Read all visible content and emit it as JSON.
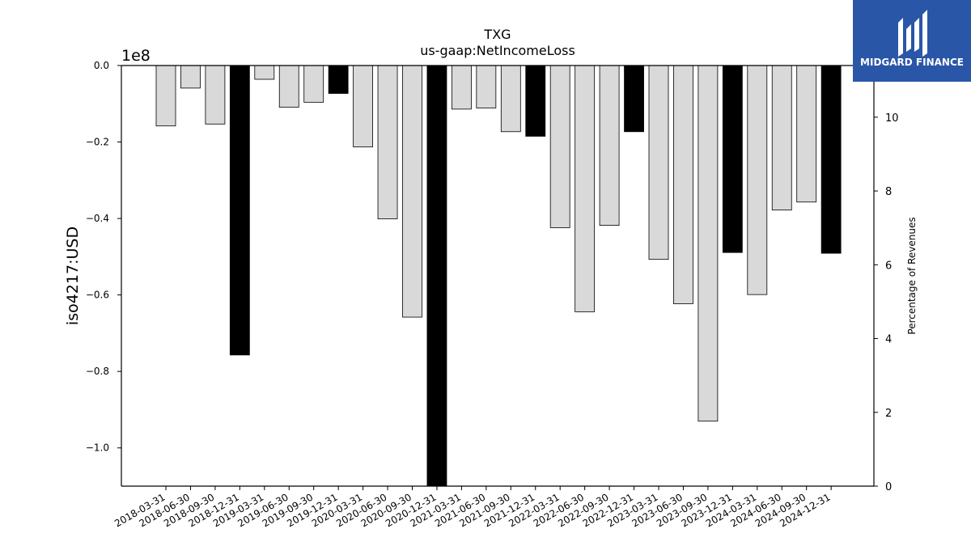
{
  "brand": {
    "name": "MIDGARD FINANCE",
    "color": "#2a56a8"
  },
  "chart_data": {
    "type": "bar",
    "title": "TXG",
    "subtitle": "us-gaap:NetIncomeLoss",
    "ylabel": "iso4217:USD",
    "y_offset_label": "1e8",
    "y2label": "Percentage of Revenues",
    "ylim": [
      -1.1,
      0.0
    ],
    "y2lim": [
      0,
      11.4
    ],
    "yticks": [
      "0.0",
      "−0.2",
      "−0.4",
      "−0.6",
      "−0.8",
      "−1.0"
    ],
    "yticks_values": [
      0.0,
      -0.2,
      -0.4,
      -0.6,
      -0.8,
      -1.0
    ],
    "y2ticks": [
      "0",
      "2",
      "4",
      "6",
      "8",
      "10"
    ],
    "y2ticks_values": [
      0,
      2,
      4,
      6,
      8,
      10
    ],
    "grid": false,
    "categories": [
      "2018-03-31",
      "2018-06-30",
      "2018-09-30",
      "2018-12-31",
      "2019-03-31",
      "2019-06-30",
      "2019-09-30",
      "2019-12-31",
      "2020-03-31",
      "2020-06-30",
      "2020-09-30",
      "2020-12-31",
      "2021-03-31",
      "2021-06-30",
      "2021-09-30",
      "2021-12-31",
      "2022-03-31",
      "2022-06-30",
      "2022-09-30",
      "2022-12-31",
      "2023-03-31",
      "2023-06-30",
      "2023-09-30",
      "2023-12-31",
      "2024-03-31",
      "2024-06-30",
      "2024-09-30",
      "2024-12-31"
    ],
    "values": [
      -0.158,
      -0.059,
      -0.153,
      -0.757,
      -0.036,
      -0.109,
      -0.096,
      -0.073,
      -0.213,
      -0.401,
      -0.658,
      -1.1,
      -0.114,
      -0.111,
      -0.173,
      -0.185,
      -0.424,
      -0.644,
      -0.418,
      -0.173,
      -0.507,
      -0.623,
      -0.93,
      -0.489,
      -0.599,
      -0.378,
      -0.357,
      -0.491
    ],
    "colors": {
      "quarter": "#d9d9d9",
      "year_end": "#000000",
      "year_end_categories": [
        "2018-12-31",
        "2019-12-31",
        "2020-12-31",
        "2021-12-31",
        "2022-12-31",
        "2023-12-31",
        "2024-12-31"
      ]
    }
  }
}
